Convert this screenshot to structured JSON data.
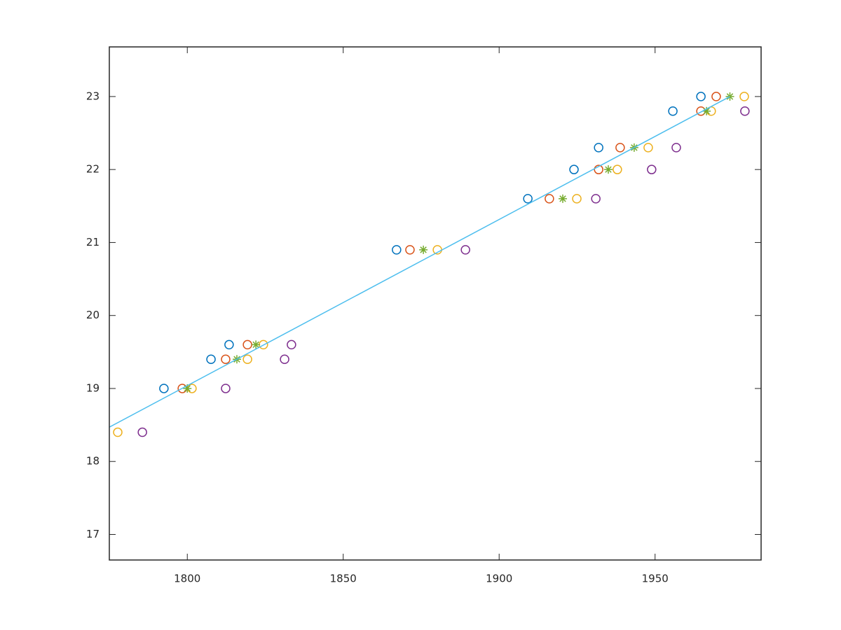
{
  "chart_data": {
    "type": "scatter",
    "xlim": [
      1775,
      1984
    ],
    "ylim": [
      16.65,
      23.68
    ],
    "xticks": [
      1800,
      1850,
      1900,
      1950
    ],
    "yticks": [
      17,
      18,
      19,
      20,
      21,
      22,
      23
    ],
    "grid": false,
    "series": [
      {
        "color": "#0072bd",
        "marker": "o",
        "x": [
          1792.5,
          1807.6,
          1813.4,
          1867.1,
          1909.2,
          1924.0,
          1931.9,
          1955.7,
          1964.7
        ],
        "values": [
          19.0,
          19.4,
          19.6,
          20.9,
          21.6,
          22.0,
          22.3,
          22.8,
          23.0
        ]
      },
      {
        "color": "#d95319",
        "marker": "o",
        "x": [
          1798.4,
          1812.3,
          1819.3,
          1871.4,
          1916.1,
          1931.9,
          1938.8,
          1964.7,
          1969.6
        ],
        "values": [
          19.0,
          19.4,
          19.6,
          20.9,
          21.6,
          22.0,
          22.3,
          22.8,
          23.0
        ]
      },
      {
        "color": "#edb120",
        "marker": "o",
        "x": [
          1777.7,
          1801.5,
          1819.3,
          1824.4,
          1880.2,
          1924.9,
          1937.9,
          1947.8,
          1968.0,
          1978.6
        ],
        "values": [
          18.4,
          19.0,
          19.4,
          19.6,
          20.9,
          21.6,
          22.0,
          22.3,
          22.8,
          23.0
        ]
      },
      {
        "color": "#7e2f8e",
        "marker": "o",
        "x": [
          1785.6,
          1812.3,
          1831.2,
          1833.4,
          1889.2,
          1931.0,
          1948.9,
          1956.8,
          1978.8
        ],
        "values": [
          18.4,
          19.0,
          19.4,
          19.6,
          20.9,
          21.6,
          22.0,
          22.3,
          22.8
        ]
      },
      {
        "color": "#77ac30",
        "marker": "*",
        "x": [
          1800.0,
          1815.9,
          1822.0,
          1875.7,
          1920.4,
          1935.0,
          1943.3,
          1966.5,
          1974.0
        ],
        "values": [
          19.0,
          19.4,
          19.6,
          20.9,
          21.6,
          22.0,
          22.3,
          22.8,
          23.0
        ]
      },
      {
        "color": "#4dbeee",
        "marker": "none",
        "x": [
          1775,
          1974
        ],
        "values": [
          18.47,
          23.0
        ]
      }
    ]
  }
}
